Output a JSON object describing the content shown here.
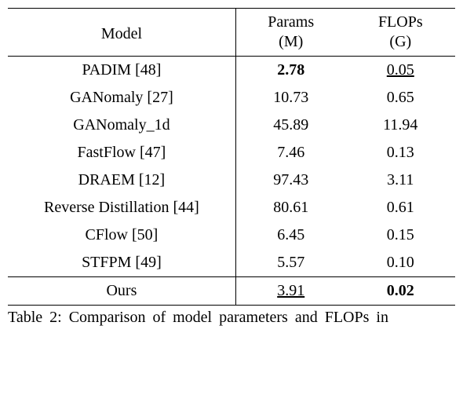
{
  "table": {
    "header": {
      "model": "Model",
      "params_label": "Params",
      "params_unit": "(M)",
      "flops_label": "FLOPs",
      "flops_unit": "(G)"
    },
    "rows": [
      {
        "model": "PADIM [48]",
        "params": "2.78",
        "params_bold": true,
        "params_underline": false,
        "flops": "0.05",
        "flops_bold": false,
        "flops_underline": true
      },
      {
        "model": "GANomaly [27]",
        "params": "10.73",
        "params_bold": false,
        "params_underline": false,
        "flops": "0.65",
        "flops_bold": false,
        "flops_underline": false
      },
      {
        "model": "GANomaly_1d",
        "params": "45.89",
        "params_bold": false,
        "params_underline": false,
        "flops": "11.94",
        "flops_bold": false,
        "flops_underline": false
      },
      {
        "model": "FastFlow [47]",
        "params": "7.46",
        "params_bold": false,
        "params_underline": false,
        "flops": "0.13",
        "flops_bold": false,
        "flops_underline": false
      },
      {
        "model": "DRAEM [12]",
        "params": "97.43",
        "params_bold": false,
        "params_underline": false,
        "flops": "3.11",
        "flops_bold": false,
        "flops_underline": false
      },
      {
        "model": "Reverse Distillation [44]",
        "params": "80.61",
        "params_bold": false,
        "params_underline": false,
        "flops": "0.61",
        "flops_bold": false,
        "flops_underline": false
      },
      {
        "model": "CFlow [50]",
        "params": "6.45",
        "params_bold": false,
        "params_underline": false,
        "flops": "0.15",
        "flops_bold": false,
        "flops_underline": false
      },
      {
        "model": "STFPM [49]",
        "params": "5.57",
        "params_bold": false,
        "params_underline": false,
        "flops": "0.10",
        "flops_bold": false,
        "flops_underline": false
      }
    ],
    "footer": {
      "model": "Ours",
      "params": "3.91",
      "params_bold": false,
      "params_underline": true,
      "flops": "0.02",
      "flops_bold": true,
      "flops_underline": false
    }
  },
  "caption": "Table 2: Comparison of model parameters and FLOPs in"
}
